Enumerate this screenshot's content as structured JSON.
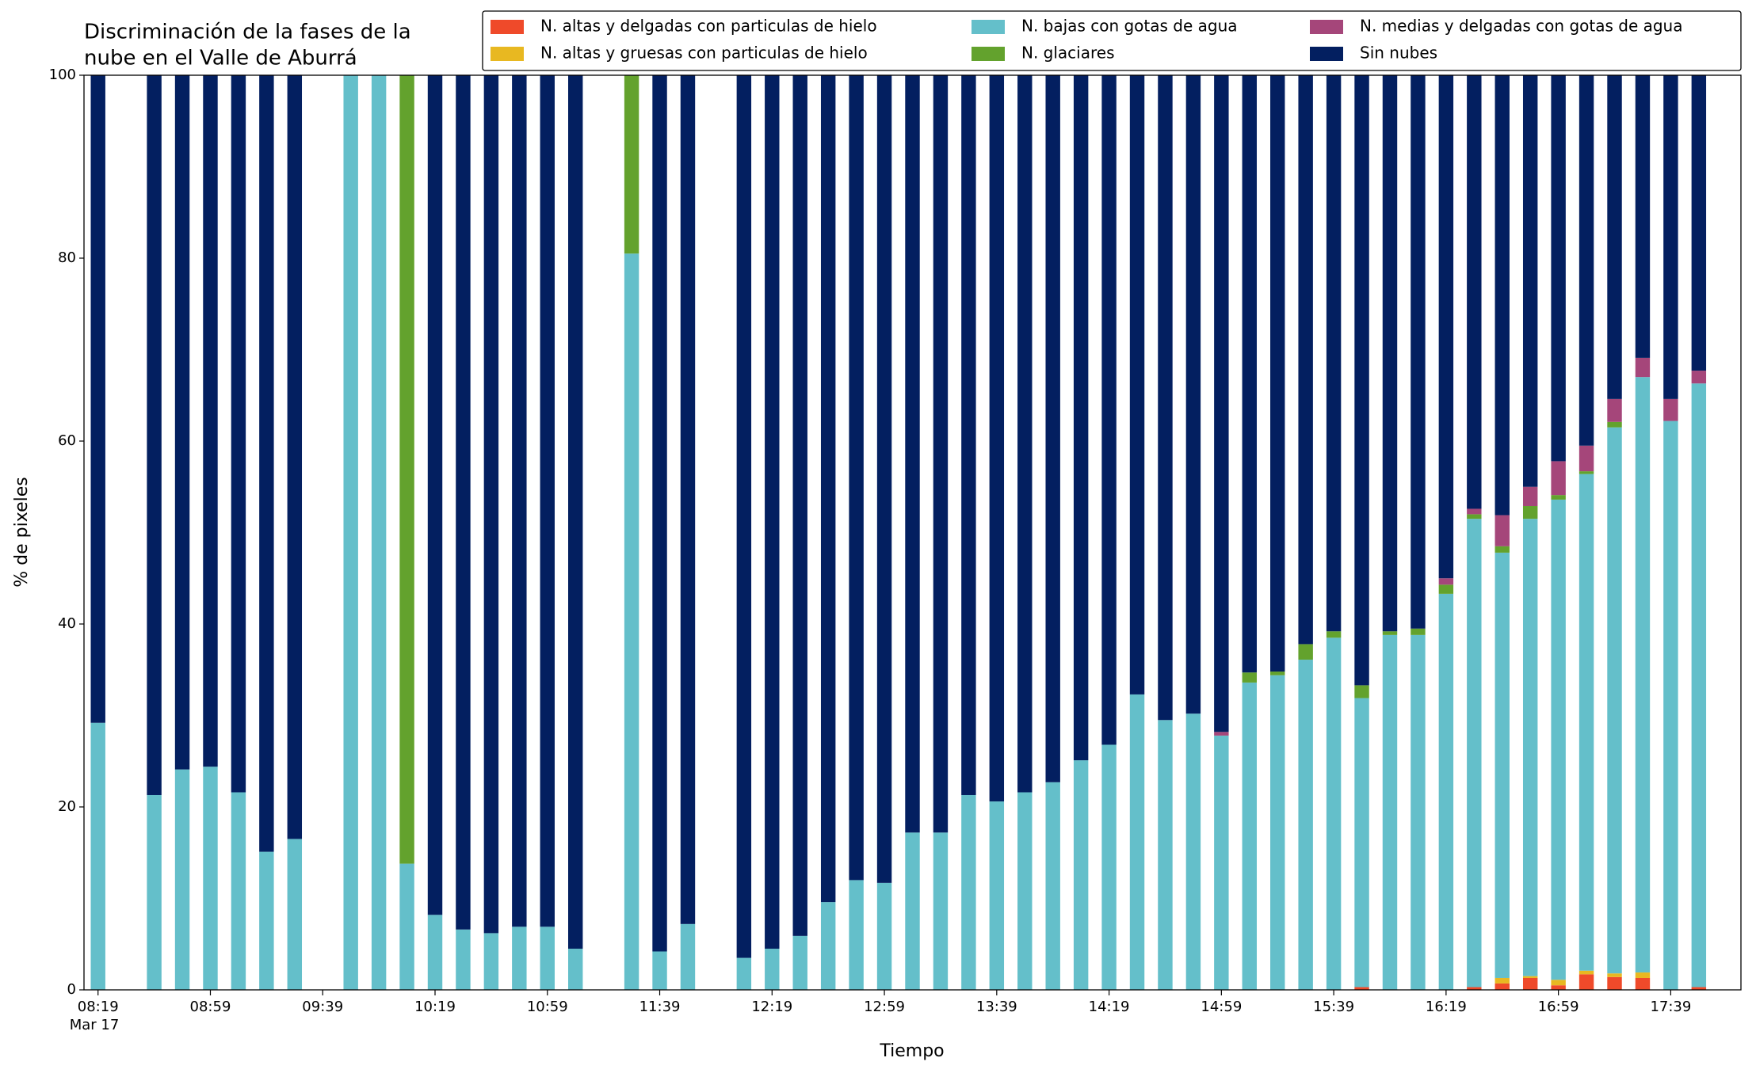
{
  "chart_data": {
    "type": "stacked_bar",
    "title": [
      "Discriminación de la fases de la",
      "nube en el Valle de Aburrá"
    ],
    "x_label": "Tiempo",
    "y_label": "% de pixeles",
    "date_label": "Mar 17",
    "x": [
      "08:19",
      "08:39",
      "08:49",
      "08:59",
      "09:09",
      "09:19",
      "09:29",
      "09:49",
      "09:59",
      "10:09",
      "10:19",
      "10:29",
      "10:39",
      "10:49",
      "10:59",
      "11:09",
      "11:29",
      "11:39",
      "11:49",
      "12:09",
      "12:19",
      "12:29",
      "12:39",
      "12:49",
      "12:59",
      "13:09",
      "13:19",
      "13:29",
      "13:39",
      "13:49",
      "13:59",
      "14:09",
      "14:19",
      "14:29",
      "14:39",
      "14:49",
      "14:59",
      "15:09",
      "15:19",
      "15:29",
      "15:39",
      "15:49",
      "15:59",
      "16:09",
      "16:19",
      "16:29",
      "16:39",
      "16:49",
      "16:59",
      "17:09",
      "17:19",
      "17:29",
      "17:39",
      "17:49"
    ],
    "xlim": [
      "08:14",
      "18:04"
    ],
    "xticks": [
      "08:19",
      "08:59",
      "09:39",
      "10:19",
      "10:59",
      "11:39",
      "12:19",
      "12:59",
      "13:39",
      "14:19",
      "14:59",
      "15:39",
      "16:19",
      "16:59",
      "17:39"
    ],
    "ylim": [
      0,
      100
    ],
    "yticks": [
      0,
      20,
      40,
      60,
      80,
      100
    ],
    "grid": false,
    "legend": "upper right",
    "series": [
      {
        "name": "N. altas y delgadas con particulas de hielo",
        "color": "#ef4a2a",
        "values": [
          0,
          0,
          0,
          0,
          0,
          0,
          0,
          0,
          0,
          0,
          0,
          0,
          0,
          0,
          0,
          0,
          0,
          0,
          0,
          0,
          0,
          0,
          0,
          0,
          0,
          0,
          0,
          0,
          0,
          0,
          0,
          0,
          0,
          0,
          0,
          0,
          0,
          0,
          0,
          0,
          0,
          0.3,
          0,
          0,
          0,
          0.3,
          0.7,
          1.3,
          0.5,
          1.7,
          1.4,
          1.3,
          0,
          0.3
        ]
      },
      {
        "name": "N. altas y gruesas con particulas de hielo",
        "color": "#e8b821",
        "values": [
          0,
          0,
          0,
          0,
          0,
          0,
          0,
          0,
          0,
          0,
          0,
          0,
          0,
          0,
          0,
          0,
          0,
          0,
          0,
          0,
          0,
          0,
          0,
          0,
          0,
          0,
          0,
          0,
          0,
          0,
          0,
          0,
          0,
          0,
          0,
          0,
          0,
          0,
          0,
          0,
          0,
          0,
          0,
          0,
          0,
          0,
          0.6,
          0.2,
          0.6,
          0.4,
          0.4,
          0.6,
          0,
          0
        ]
      },
      {
        "name": "N. bajas con gotas de agua",
        "color": "#64bfca",
        "values": [
          29.2,
          21.3,
          24.1,
          24.4,
          21.6,
          15.1,
          16.5,
          100,
          100,
          13.8,
          8.2,
          6.6,
          6.2,
          6.9,
          6.9,
          4.5,
          80.5,
          4.2,
          7.2,
          3.5,
          4.5,
          5.9,
          9.6,
          12.0,
          11.7,
          17.2,
          17.2,
          21.3,
          20.6,
          21.6,
          22.7,
          25.1,
          26.8,
          32.3,
          29.5,
          30.2,
          27.8,
          33.6,
          34.4,
          36.1,
          38.5,
          31.6,
          38.8,
          38.8,
          43.3,
          51.2,
          46.5,
          50.0,
          52.5,
          54.3,
          59.7,
          65.1,
          62.2,
          66.0
        ]
      },
      {
        "name": "N. glaciares",
        "color": "#63a22d",
        "values": [
          0,
          0,
          0,
          0,
          0,
          0,
          0,
          0,
          0,
          86.2,
          0,
          0,
          0,
          0,
          0,
          0,
          19.5,
          0,
          0,
          0,
          0,
          0,
          0,
          0,
          0,
          0,
          0,
          0,
          0,
          0,
          0,
          0,
          0,
          0,
          0,
          0,
          0,
          1.1,
          0.4,
          1.7,
          0.7,
          1.4,
          0.4,
          0.7,
          1.0,
          0.5,
          0.7,
          1.4,
          0.5,
          0.3,
          0.6,
          0,
          0,
          0
        ]
      },
      {
        "name": "N. medias y delgadas con gotas de agua",
        "color": "#a5467a",
        "values": [
          0,
          0,
          0,
          0,
          0,
          0,
          0,
          0,
          0,
          0,
          0,
          0,
          0,
          0,
          0,
          0,
          0,
          0,
          0,
          0,
          0,
          0,
          0,
          0,
          0,
          0,
          0,
          0,
          0,
          0,
          0,
          0,
          0,
          0,
          0,
          0,
          0.4,
          0,
          0,
          0,
          0,
          0,
          0,
          0,
          0.7,
          0.6,
          3.4,
          2.1,
          3.7,
          2.8,
          2.5,
          2.1,
          2.4,
          1.4
        ]
      },
      {
        "name": "Sin nubes",
        "color": "#031f60",
        "values": [
          70.8,
          78.7,
          75.9,
          75.6,
          78.4,
          84.9,
          83.5,
          0,
          0,
          0,
          91.8,
          93.4,
          93.8,
          93.1,
          93.1,
          95.5,
          0,
          95.8,
          92.8,
          96.5,
          95.5,
          94.1,
          90.4,
          88.0,
          88.3,
          82.8,
          82.8,
          78.7,
          79.4,
          78.4,
          77.3,
          74.9,
          73.2,
          67.7,
          70.5,
          69.8,
          71.8,
          65.3,
          65.2,
          62.2,
          60.8,
          66.7,
          60.8,
          60.5,
          55.0,
          47.4,
          48.1,
          45.0,
          42.2,
          40.5,
          35.4,
          30.9,
          35.4,
          32.3
        ]
      }
    ]
  }
}
